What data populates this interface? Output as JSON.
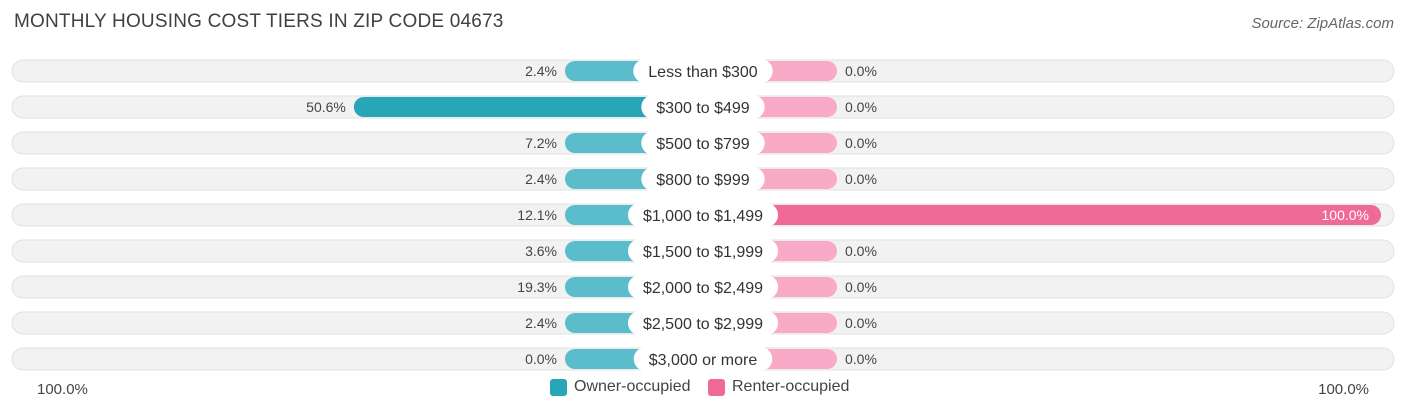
{
  "title": "MONTHLY HOUSING COST TIERS IN ZIP CODE 04673",
  "source": "Source: ZipAtlas.com",
  "colors": {
    "owner": "#5bbccb",
    "owner_dark": "#27a6b8",
    "renter": "#f8aac6",
    "renter_dark": "#f06a97",
    "row_bg": "#f0f0f0"
  },
  "chart_data": {
    "type": "bar",
    "orientation": "horizontal-diverging",
    "categories": [
      "Less than $300",
      "$300 to $499",
      "$500 to $799",
      "$800 to $999",
      "$1,000 to $1,499",
      "$1,500 to $1,999",
      "$2,000 to $2,499",
      "$2,500 to $2,999",
      "$3,000 or more"
    ],
    "series": [
      {
        "name": "Owner-occupied",
        "values": [
          2.4,
          50.6,
          7.2,
          2.4,
          12.1,
          3.6,
          19.3,
          2.4,
          0.0
        ],
        "labels": [
          "2.4%",
          "50.6%",
          "7.2%",
          "2.4%",
          "12.1%",
          "3.6%",
          "19.3%",
          "2.4%",
          "0.0%"
        ]
      },
      {
        "name": "Renter-occupied",
        "values": [
          0.0,
          0.0,
          0.0,
          0.0,
          100.0,
          0.0,
          0.0,
          0.0,
          0.0
        ],
        "labels": [
          "0.0%",
          "0.0%",
          "0.0%",
          "0.0%",
          "100.0%",
          "0.0%",
          "0.0%",
          "0.0%",
          "0.0%"
        ]
      }
    ],
    "xlim": [
      0,
      100
    ],
    "axis_left_label": "100.0%",
    "axis_right_label": "100.0%",
    "legend_position": "bottom-center"
  }
}
